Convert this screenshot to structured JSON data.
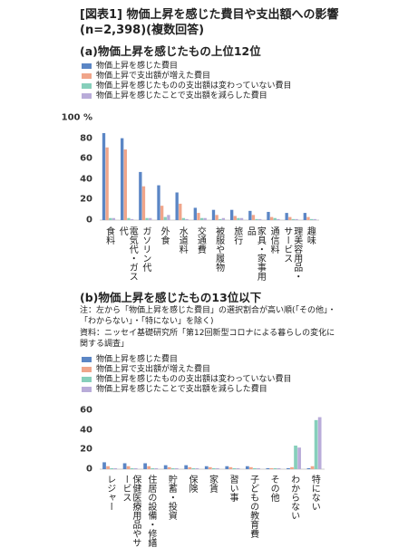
{
  "header": {
    "title": "[図表1] 物価上昇を感じた費目や支出額への影響(n=2,398)(複数回答)"
  },
  "chart_data": [
    {
      "type": "bar",
      "title": "(a)物価上昇を感じたもの上位12位",
      "categories": [
        "食料",
        "電気代・ガス代",
        "ガソリン代",
        "外食",
        "水道料",
        "交通費",
        "被服や履物",
        "旅行",
        "家具・家事用品",
        "通信料",
        "理美容用品・サービス",
        "趣味"
      ],
      "series": [
        {
          "name": "物価上昇を感じた費目",
          "color": "#5b86c5",
          "values": [
            85,
            80,
            47,
            34,
            27,
            12,
            10,
            10,
            9,
            8,
            7,
            7
          ]
        },
        {
          "name": "物価上昇で支出額が増えた費目",
          "color": "#f0a58a",
          "values": [
            71,
            69,
            33,
            14,
            16,
            7,
            5,
            4,
            5,
            3,
            3,
            3
          ]
        },
        {
          "name": "物価上昇を感じたものの支出額は変わっていない費目",
          "color": "#86cfbb",
          "values": [
            2,
            2,
            2,
            3,
            2,
            2,
            1,
            2,
            1,
            2,
            1,
            1
          ]
        },
        {
          "name": "物価上昇を感じたことで支出額を減らした費目",
          "color": "#b9acd9",
          "values": [
            2,
            1,
            2,
            5,
            1,
            2,
            2,
            2,
            1,
            1,
            1,
            1
          ]
        }
      ],
      "ylim": [
        0,
        100
      ],
      "yticks": [
        0,
        20,
        40,
        60,
        80,
        {
          "value": 100,
          "label": "100 %"
        }
      ]
    },
    {
      "type": "bar",
      "title": "(b)物価上昇を感じたもの13位以下",
      "note": "注：左から「物価上昇を感じた費目」の選択割合が高い順(「その他」・「わからない」・「特にない」を除く)",
      "source": "資料：ニッセイ基礎研究所「第12回新型コロナによる暮らしの変化に関する調査」",
      "categories": [
        "レジャー",
        "保健医療用品やサービス",
        "住居の設備・修繕",
        "貯蓄・投資",
        "保険",
        "家賃",
        "習い事",
        "子どもの教育費",
        "その他",
        "わからない",
        "特にない"
      ],
      "series": [
        {
          "name": "物価上昇を感じた費目",
          "color": "#5b86c5",
          "values": [
            7,
            6,
            6,
            4,
            4,
            3,
            3,
            3,
            1,
            1,
            1
          ]
        },
        {
          "name": "物価上昇で支出額が増えた費目",
          "color": "#f0a58a",
          "values": [
            3,
            3,
            3,
            2,
            2,
            2,
            2,
            2,
            1,
            2,
            3
          ]
        },
        {
          "name": "物価上昇を感じたものの支出額は変わっていない費目",
          "color": "#86cfbb",
          "values": [
            1,
            1,
            1,
            1,
            1,
            1,
            1,
            1,
            1,
            24,
            50
          ]
        },
        {
          "name": "物価上昇を感じたことで支出額を減らした費目",
          "color": "#b9acd9",
          "values": [
            1,
            1,
            1,
            1,
            1,
            1,
            1,
            1,
            1,
            22,
            53
          ]
        }
      ],
      "ylim": [
        0,
        60
      ],
      "yticks": [
        0,
        20,
        40,
        60
      ]
    }
  ]
}
